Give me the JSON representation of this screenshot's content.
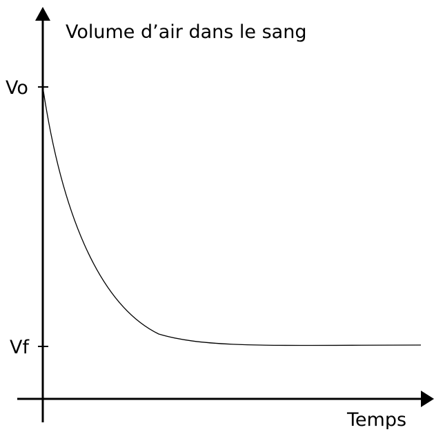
{
  "diagram": {
    "y_axis_label": "Volume d’air dans le sang",
    "x_axis_label": "Temps",
    "tick_labels": [
      "Vo",
      "Vf"
    ]
  }
}
